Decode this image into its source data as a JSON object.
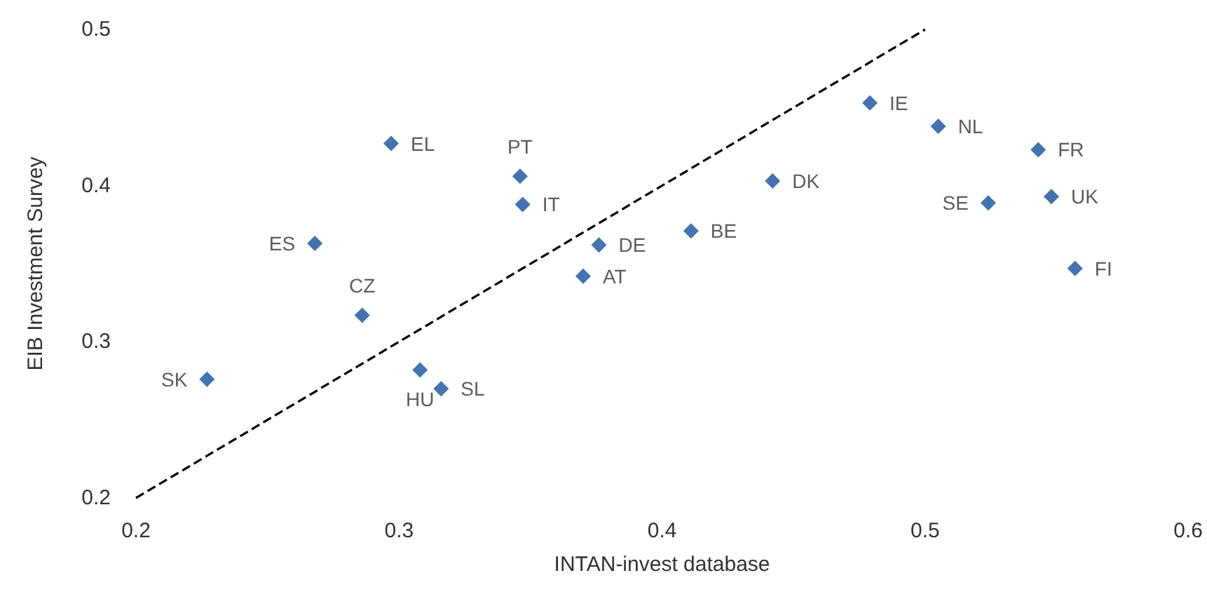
{
  "chart_data": {
    "type": "scatter",
    "xlabel": "INTAN-invest database",
    "ylabel": "EIB Investment Survey",
    "xlim": [
      0.2,
      0.6
    ],
    "xticks": [
      0.2,
      0.3,
      0.4,
      0.5,
      0.6
    ],
    "ylim": [
      0.2,
      0.5
    ],
    "yticks": [
      0.2,
      0.3,
      0.4,
      0.5
    ],
    "grid": false,
    "series": [
      {
        "color": "#14509e",
        "marker": "diamond",
        "x": [
          0.227,
          0.268,
          0.286,
          0.297,
          0.308,
          0.316,
          0.346,
          0.347,
          0.376,
          0.37,
          0.411,
          0.442,
          0.479,
          0.505,
          0.543,
          0.524,
          0.548,
          0.557
        ],
        "values": [
          0.276,
          0.363,
          0.317,
          0.427,
          0.282,
          0.27,
          0.406,
          0.388,
          0.362,
          0.342,
          0.371,
          0.403,
          0.453,
          0.438,
          0.423,
          0.389,
          0.393,
          0.347
        ]
      },
      {
        "type": "line",
        "color": "#000000",
        "line_style": "dashed",
        "marker": "none",
        "x": [
          0.2,
          0.5
        ],
        "values": [
          0.2,
          0.5
        ]
      }
    ],
    "annotations": [
      {
        "text": "SK",
        "x": 0.227,
        "y": 0.276
      },
      {
        "text": "ES",
        "x": 0.268,
        "y": 0.363
      },
      {
        "text": "CZ",
        "x": 0.286,
        "y": 0.317
      },
      {
        "text": "EL",
        "x": 0.297,
        "y": 0.427
      },
      {
        "text": "HU",
        "x": 0.308,
        "y": 0.282
      },
      {
        "text": "SL",
        "x": 0.316,
        "y": 0.27
      },
      {
        "text": "PT",
        "x": 0.346,
        "y": 0.406
      },
      {
        "text": "IT",
        "x": 0.347,
        "y": 0.388
      },
      {
        "text": "DE",
        "x": 0.376,
        "y": 0.362
      },
      {
        "text": "AT",
        "x": 0.37,
        "y": 0.342
      },
      {
        "text": "BE",
        "x": 0.411,
        "y": 0.371
      },
      {
        "text": "DK",
        "x": 0.442,
        "y": 0.403
      },
      {
        "text": "IE",
        "x": 0.479,
        "y": 0.453
      },
      {
        "text": "NL",
        "x": 0.505,
        "y": 0.438
      },
      {
        "text": "FR",
        "x": 0.543,
        "y": 0.423
      },
      {
        "text": "SE",
        "x": 0.524,
        "y": 0.389
      },
      {
        "text": "UK",
        "x": 0.548,
        "y": 0.393
      },
      {
        "text": "FI",
        "x": 0.557,
        "y": 0.347
      }
    ]
  }
}
